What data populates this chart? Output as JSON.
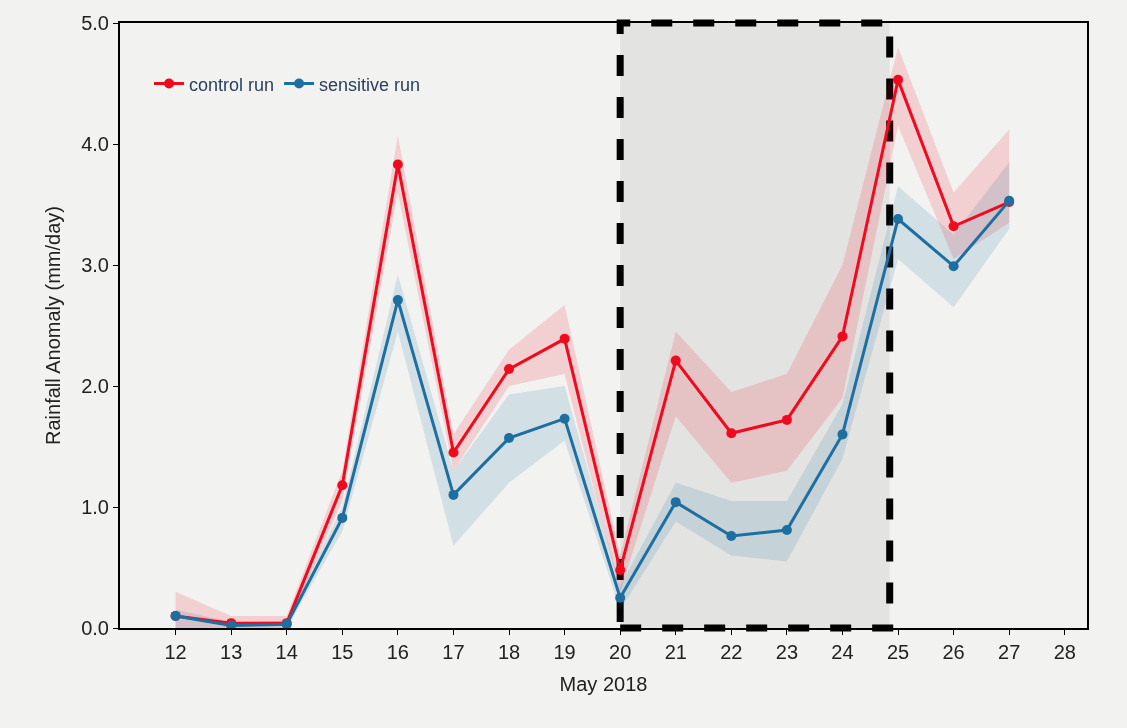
{
  "chart_data": {
    "type": "line",
    "xlabel": "May 2018",
    "ylabel": "Rainfall Anomaly (mm/day)",
    "x": [
      12,
      13,
      14,
      15,
      16,
      17,
      18,
      19,
      20,
      21,
      22,
      23,
      24,
      25,
      26,
      27
    ],
    "series": [
      {
        "name": "control run",
        "color": "#f00a1e",
        "values": [
          0.1,
          0.04,
          0.04,
          1.18,
          3.83,
          1.45,
          2.14,
          2.39,
          0.48,
          2.21,
          1.61,
          1.72,
          2.41,
          4.53,
          3.32,
          3.52
        ],
        "lower": [
          0.0,
          0.0,
          0.0,
          1.05,
          3.6,
          1.3,
          2.0,
          2.1,
          0.3,
          1.75,
          1.2,
          1.3,
          1.9,
          4.15,
          3.05,
          3.35
        ],
        "upper": [
          0.3,
          0.1,
          0.1,
          1.3,
          4.07,
          1.6,
          2.3,
          2.67,
          0.6,
          2.45,
          1.95,
          2.1,
          3.0,
          4.8,
          3.6,
          4.12
        ]
      },
      {
        "name": "sensitive run",
        "color": "#1e6fa0",
        "values": [
          0.1,
          0.02,
          0.03,
          0.91,
          2.71,
          1.1,
          1.57,
          1.73,
          0.25,
          1.04,
          0.76,
          0.81,
          1.6,
          3.38,
          2.99,
          3.53
        ],
        "lower": [
          0.0,
          0.0,
          0.0,
          0.8,
          2.45,
          0.68,
          1.2,
          1.55,
          0.15,
          0.88,
          0.6,
          0.55,
          1.4,
          3.05,
          2.65,
          3.3
        ],
        "upper": [
          0.15,
          0.05,
          0.06,
          1.0,
          2.92,
          1.3,
          1.93,
          2.0,
          0.35,
          1.2,
          1.05,
          1.05,
          1.85,
          3.65,
          3.25,
          3.85
        ]
      }
    ],
    "bands": [
      {
        "axis": "x",
        "from": 20,
        "to": 24.85,
        "color": "#000000"
      }
    ],
    "xlim": [
      11.0,
      28.4
    ],
    "xticks": [
      12,
      13,
      14,
      15,
      16,
      17,
      18,
      19,
      20,
      21,
      22,
      23,
      24,
      25,
      26,
      27,
      28
    ],
    "ylim": [
      0,
      5.0
    ],
    "yticks": [
      {
        "value": 0,
        "label": "0.0"
      },
      {
        "value": 1,
        "label": "1.0"
      },
      {
        "value": 2,
        "label": "2.0"
      },
      {
        "value": 3,
        "label": "3.0"
      },
      {
        "value": 4,
        "label": "4.0"
      },
      {
        "value": 5,
        "label": "5.0"
      }
    ],
    "grid": false,
    "legend": "top left",
    "marker": "circle",
    "line_style": "solid"
  }
}
